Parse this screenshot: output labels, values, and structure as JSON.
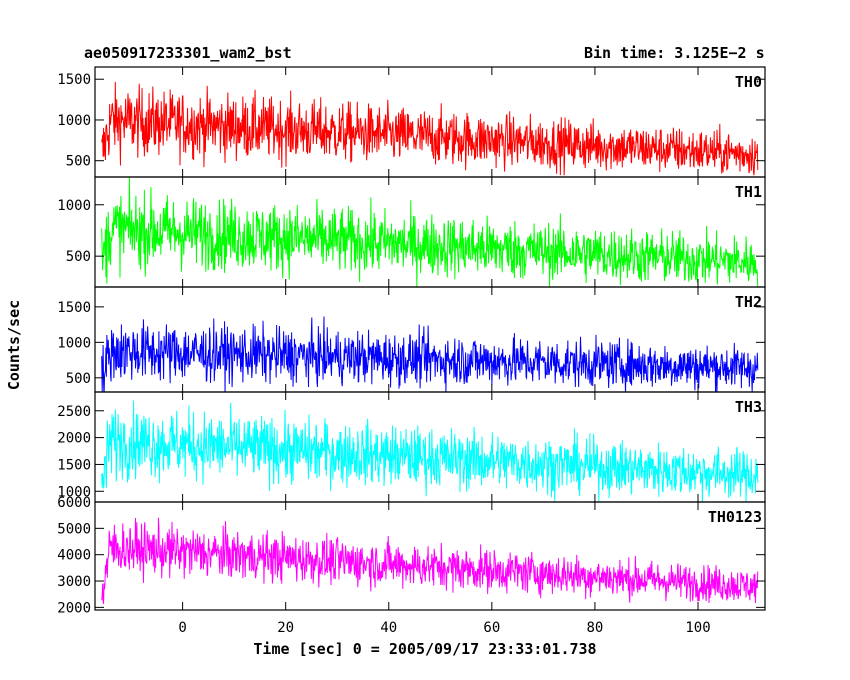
{
  "header": {
    "title": "ae050917233301_wam2_bst",
    "bin_time": "Bin time: 3.125E−2 s"
  },
  "axes": {
    "xlabel": "Time [sec] 0 = 2005/09/17 23:33:01.738",
    "ylabel": "Counts/sec"
  },
  "chart_data": {
    "type": "line",
    "title": "ae050917233301_wam2_bst",
    "xlabel": "Time [sec] 0 = 2005/09/17 23:33:01.738",
    "ylabel": "Counts/sec",
    "xlim": [
      -17,
      113
    ],
    "xticks": [
      0,
      20,
      40,
      60,
      80,
      100
    ],
    "x_range": [
      -15.7,
      111.6
    ],
    "bin_time_s": 0.03125,
    "grid": false,
    "panels": [
      {
        "name": "TH0",
        "color": "#ff0000",
        "ylim": [
          300,
          1650
        ],
        "yticks": [
          500,
          1000,
          1500
        ],
        "trend_start": 1000,
        "trend_end": 580,
        "spread_start": 420,
        "spread_end": 260
      },
      {
        "name": "TH1",
        "color": "#00ff00",
        "ylim": [
          200,
          1270
        ],
        "yticks": [
          500,
          1000
        ],
        "trend_start": 770,
        "trend_end": 440,
        "spread_start": 360,
        "spread_end": 240
      },
      {
        "name": "TH2",
        "color": "#0000ff",
        "ylim": [
          300,
          1780
        ],
        "yticks": [
          500,
          1000,
          1500
        ],
        "trend_start": 880,
        "trend_end": 640,
        "spread_start": 420,
        "spread_end": 300
      },
      {
        "name": "TH3",
        "color": "#00ffff",
        "ylim": [
          800,
          2850
        ],
        "yticks": [
          1000,
          1500,
          2000,
          2500
        ],
        "trend_start": 1950,
        "trend_end": 1300,
        "spread_start": 650,
        "spread_end": 450
      },
      {
        "name": "TH0123",
        "color": "#ff00ff",
        "ylim": [
          1900,
          6000
        ],
        "yticks": [
          2000,
          3000,
          4000,
          5000,
          6000
        ],
        "trend_start": 4300,
        "trend_end": 2800,
        "spread_start": 1000,
        "spread_end": 650
      }
    ]
  }
}
